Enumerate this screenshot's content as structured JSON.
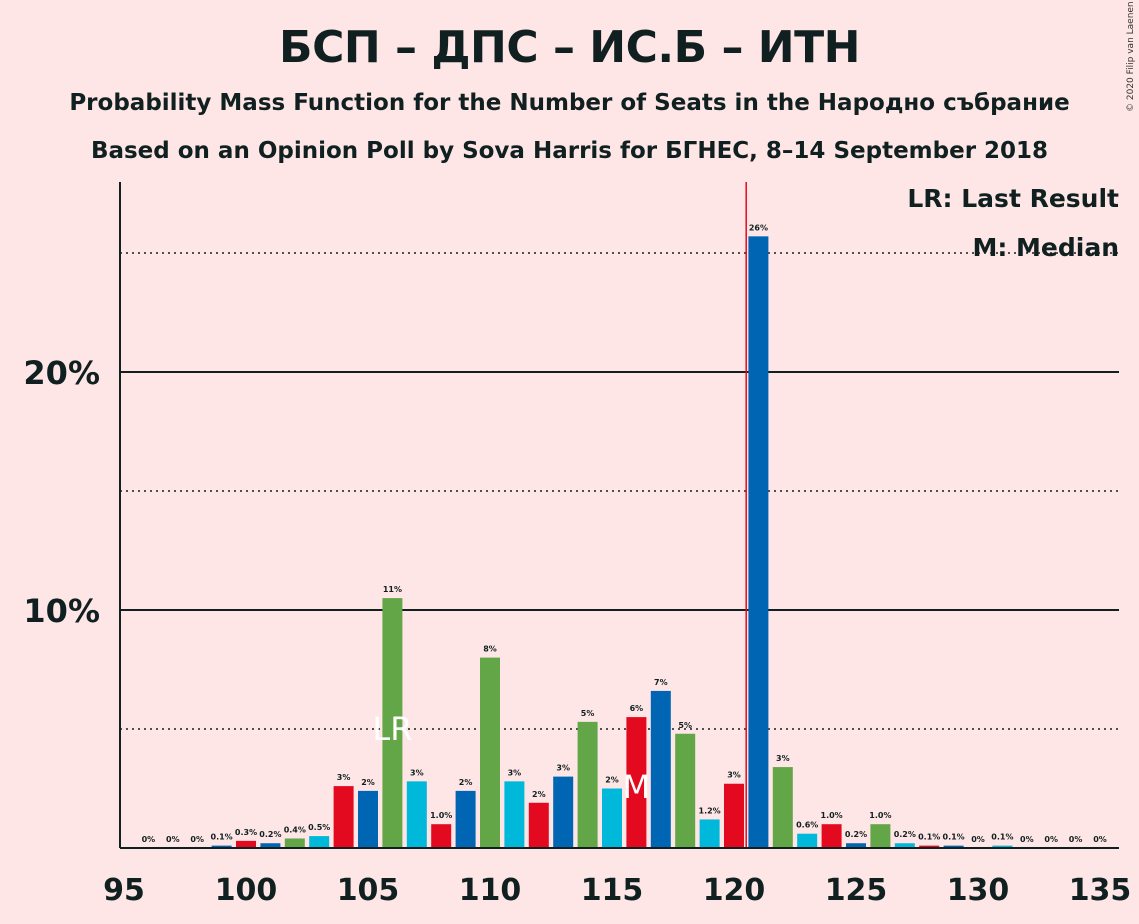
{
  "chart_data": {
    "type": "bar",
    "title": "БСП – ДПС – ИС.Б – ИТН",
    "subtitle": "Probability Mass Function for the Number of Seats in the Народно събрание",
    "subtitle2": "Based on an Opinion Poll by Sova Harris for БГНЕС, 8–14 September 2018",
    "copyright": "© 2020 Filip van Laenen",
    "legend": {
      "last_result": "LR: Last Result",
      "median": "M: Median",
      "placement": "top-right"
    },
    "xlim": [
      95,
      135
    ],
    "ylim": [
      0,
      28
    ],
    "yticks": [
      {
        "value": 10,
        "label": "10%"
      },
      {
        "value": 20,
        "label": "20%"
      }
    ],
    "xticks": [
      95,
      100,
      105,
      110,
      115,
      120,
      125,
      130,
      135
    ],
    "gridlines": {
      "solid": [
        10,
        20
      ],
      "dotted": [
        5,
        15,
        25
      ]
    },
    "majority_line": 120.5,
    "markers": [
      {
        "x": 106,
        "text": "LR"
      },
      {
        "x": 116,
        "text": "M"
      }
    ],
    "palette": [
      "#62A647",
      "#00B8DA",
      "#E30A1F",
      "#0066B3"
    ],
    "x": [
      96,
      97,
      98,
      99,
      100,
      101,
      102,
      103,
      104,
      105,
      106,
      107,
      108,
      109,
      110,
      111,
      112,
      113,
      114,
      115,
      116,
      117,
      118,
      119,
      120,
      121,
      122,
      123,
      124,
      125,
      126,
      127,
      128,
      129,
      130,
      131,
      132,
      133,
      134,
      135
    ],
    "values": [
      0,
      0,
      0,
      0.1,
      0.3,
      0.2,
      0.4,
      0.5,
      2.6,
      2.4,
      10.5,
      2.8,
      1.0,
      2.4,
      8.0,
      2.8,
      1.9,
      3.0,
      5.3,
      2.5,
      5.5,
      6.6,
      4.8,
      1.2,
      2.7,
      25.7,
      3.4,
      0.6,
      1.0,
      0.2,
      1.0,
      0.2,
      0.1,
      0.1,
      0,
      0.1,
      0,
      0,
      0,
      0
    ],
    "labels": [
      "0%",
      "0%",
      "0%",
      "0.1%",
      "0.3%",
      "0.2%",
      "0.4%",
      "0.5%",
      "3%",
      "2%",
      "11%",
      "3%",
      "1.0%",
      "2%",
      "8%",
      "3%",
      "2%",
      "3%",
      "5%",
      "2%",
      "6%",
      "7%",
      "5%",
      "1.2%",
      "3%",
      "26%",
      "3%",
      "0.6%",
      "1.0%",
      "0.2%",
      "1.0%",
      "0.2%",
      "0.1%",
      "0.1%",
      "0%",
      "0.1%",
      "0%",
      "0%",
      "0%",
      "0%"
    ],
    "colors": [
      "#62A647",
      "#00B8DA",
      "#E30A1F",
      "#0066B3",
      "#E30A1F",
      "#0066B3",
      "#62A647",
      "#00B8DA",
      "#E30A1F",
      "#0066B3",
      "#62A647",
      "#00B8DA",
      "#E30A1F",
      "#0066B3",
      "#62A647",
      "#00B8DA",
      "#E30A1F",
      "#0066B3",
      "#62A647",
      "#00B8DA",
      "#E30A1F",
      "#0066B3",
      "#62A647",
      "#00B8DA",
      "#E30A1F",
      "#0066B3",
      "#62A647",
      "#00B8DA",
      "#E30A1F",
      "#0066B3",
      "#62A647",
      "#00B8DA",
      "#E30A1F",
      "#0066B3",
      "#62A647",
      "#00B8DA",
      "#E30A1F",
      "#0066B3",
      "#62A647",
      "#00B8DA"
    ]
  }
}
